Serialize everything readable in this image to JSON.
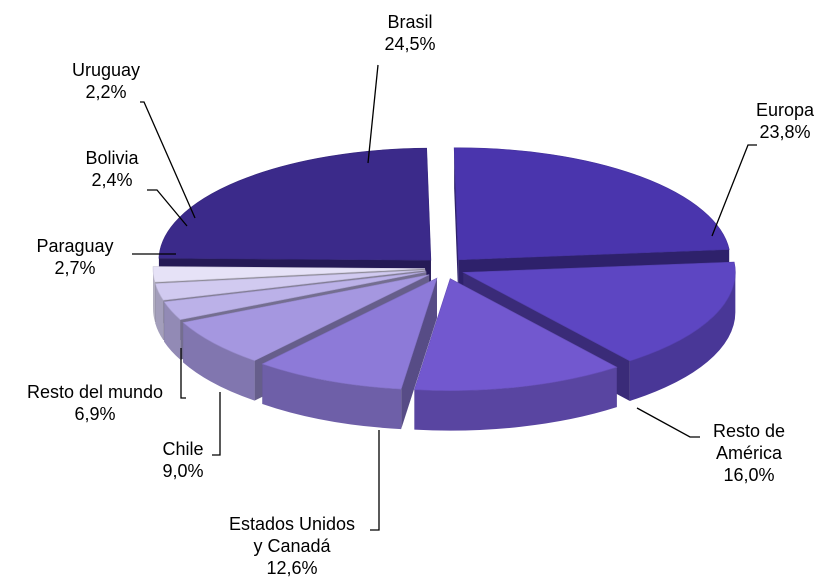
{
  "chart_data": {
    "type": "pie",
    "style": "3d-exploded",
    "title": "",
    "legend": "none",
    "slices": [
      {
        "name": "Brasil",
        "label_lines": [
          "Brasil"
        ],
        "value_label": "24,5%",
        "value": 24.5,
        "color": "#3b2a8a"
      },
      {
        "name": "Europa",
        "label_lines": [
          "Europa"
        ],
        "value_label": "23,8%",
        "value": 23.8,
        "color": "#4a35ad"
      },
      {
        "name": "Resto de América",
        "label_lines": [
          "Resto de",
          "América"
        ],
        "value_label": "16,0%",
        "value": 16.0,
        "color": "#5d46c2"
      },
      {
        "name": "Estados Unidos y Canadá",
        "label_lines": [
          "Estados Unidos",
          "y Canadá"
        ],
        "value_label": "12,6%",
        "value": 12.6,
        "color": "#7258cf"
      },
      {
        "name": "Chile",
        "label_lines": [
          "Chile"
        ],
        "value_label": "9,0%",
        "value": 9.0,
        "color": "#8d7ad8"
      },
      {
        "name": "Resto del mundo",
        "label_lines": [
          "Resto del mundo"
        ],
        "value_label": "6,9%",
        "value": 6.9,
        "color": "#a597e0"
      },
      {
        "name": "Paraguay",
        "label_lines": [
          "Paraguay"
        ],
        "value_label": "2,7%",
        "value": 2.7,
        "color": "#bbb1e8"
      },
      {
        "name": "Bolivia",
        "label_lines": [
          "Bolivia"
        ],
        "value_label": "2,4%",
        "value": 2.4,
        "color": "#d1caf0"
      },
      {
        "name": "Uruguay",
        "label_lines": [
          "Uruguay"
        ],
        "value_label": "2,2%",
        "value": 2.2,
        "color": "#e6e2f7"
      }
    ]
  }
}
